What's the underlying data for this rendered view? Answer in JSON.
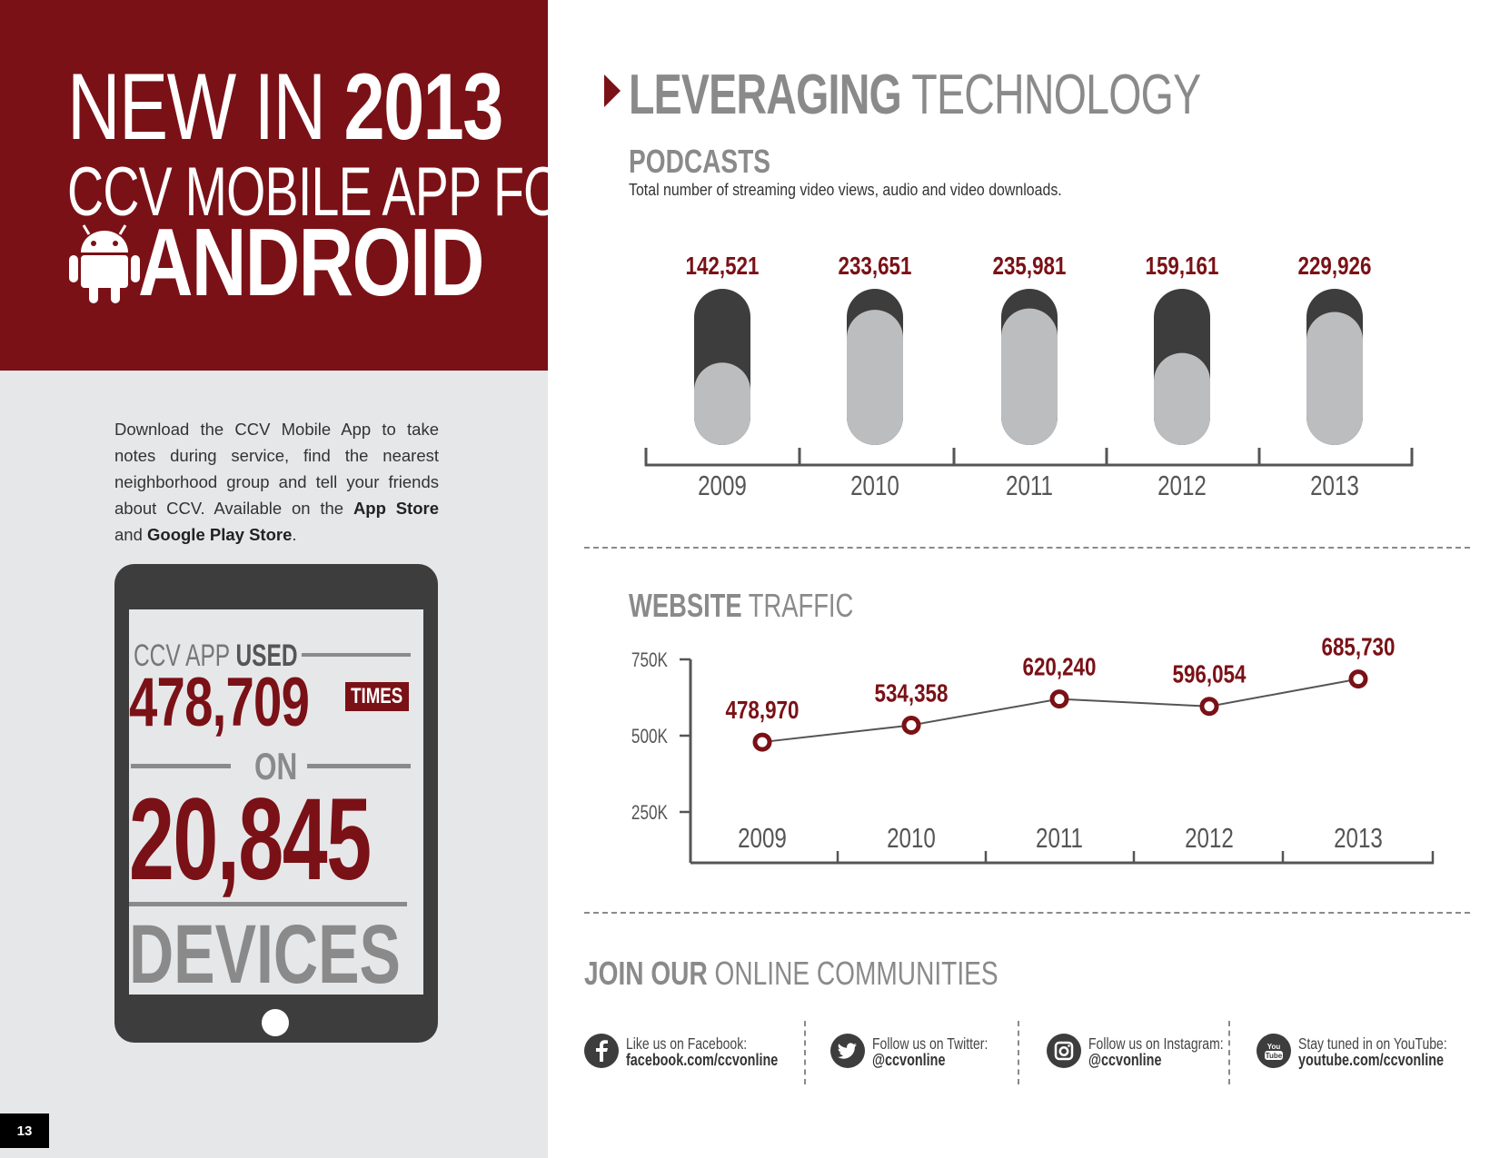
{
  "headline": {
    "line1_light": "NEW IN",
    "line1_bold": "2013",
    "line2": "CCV MOBILE APP FOR",
    "line3": "ANDROID",
    "icon": "android-icon"
  },
  "intro": {
    "text_before": "Download the CCV Mobile App to take notes during service, find the nearest neighborhood group and tell your friends about CCV. Available on the ",
    "store1": "App Store",
    "and": " and ",
    "store2": "Google Play Store",
    "end": "."
  },
  "tablet": {
    "used_light": "CCV APP",
    "used_bold": "USED",
    "times_count": "478,709",
    "times_label": "TIMES",
    "on_label": "ON",
    "devices_count": "20,845",
    "devices_label": "DEVICES"
  },
  "page_number": "13",
  "section": {
    "title_bold": "LEVERAGING",
    "title_light": "TECHNOLOGY"
  },
  "podcasts": {
    "title": "PODCASTS",
    "subtitle": "Total number of streaming video views, audio and video downloads."
  },
  "website": {
    "title_bold": "WEBSITE",
    "title_light": "TRAFFIC"
  },
  "chart_data": [
    {
      "type": "bar",
      "title": "PODCASTS",
      "categories": [
        "2009",
        "2010",
        "2011",
        "2012",
        "2013"
      ],
      "values": [
        142521,
        233651,
        235981,
        159161,
        229926
      ],
      "value_labels": [
        "142,521",
        "233,651",
        "235,981",
        "159,161",
        "229,926"
      ],
      "ylim": [
        0,
        270000
      ],
      "colors": {
        "fill": "#bcbdbf",
        "track": "#3d3d3d",
        "label": "#7a1116",
        "axis": "#555555"
      }
    },
    {
      "type": "line",
      "title": "WEBSITE TRAFFIC",
      "x": [
        "2009",
        "2010",
        "2011",
        "2012",
        "2013"
      ],
      "values": [
        478970,
        534358,
        620240,
        596054,
        685730
      ],
      "value_labels": [
        "478,970",
        "534,358",
        "620,240",
        "596,054",
        "685,730"
      ],
      "yticks": [
        "750K",
        "500K",
        "250K"
      ],
      "ytick_values": [
        750000,
        500000,
        250000
      ],
      "colors": {
        "line": "#555555",
        "marker": "#7a1116",
        "label": "#7a1116"
      }
    }
  ],
  "communities": {
    "title_bold": "JOIN OUR",
    "title_light": "ONLINE COMMUNITIES",
    "items": [
      {
        "icon": "facebook-icon",
        "label": "Like us on Facebook:",
        "handle": "facebook.com/ccvonline"
      },
      {
        "icon": "twitter-icon",
        "label": "Follow us on Twitter:",
        "handle": "@ccvonline"
      },
      {
        "icon": "instagram-icon",
        "label": "Follow us on Instagram:",
        "handle": "@ccvonline"
      },
      {
        "icon": "youtube-icon",
        "label": "Stay tuned in on YouTube:",
        "handle": "youtube.com/ccvonline",
        "icon_text_top": "You",
        "icon_text_bottom": "Tube"
      }
    ]
  },
  "colors": {
    "brand_red": "#7a1116",
    "gray": "#8a8a8a",
    "dark": "#3d3d3d",
    "panel_bg": "#e6e7e9"
  }
}
